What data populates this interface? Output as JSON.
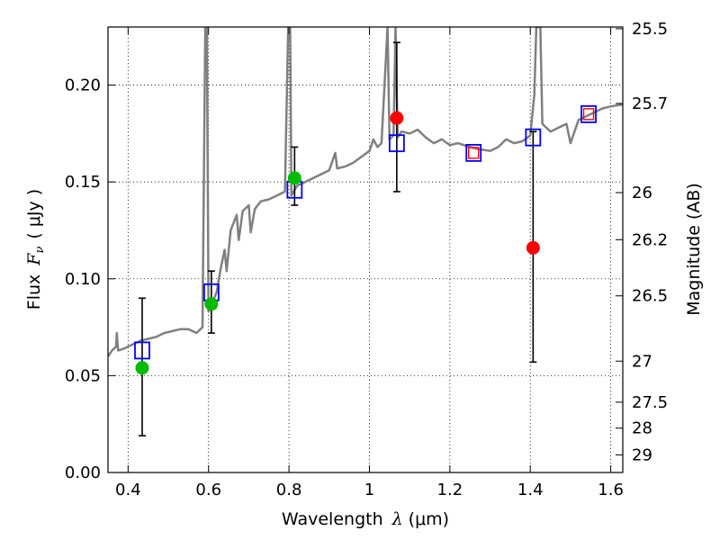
{
  "chart_data": {
    "type": "scatter",
    "xlabel_text": "Wavelength",
    "xlabel_symbol": "λ",
    "xlabel_unit": "(μm)",
    "ylabel_text": "Flux",
    "ylabel_symbol": "F",
    "ylabel_sub": "ν",
    "ylabel_unit": "( μJy )",
    "y2label": "Magnitude (AB)",
    "xlim": [
      0.35,
      1.63
    ],
    "ylim": [
      0.0,
      0.23
    ],
    "grid": true,
    "grid_style": "dotted",
    "x_ticks": [
      0.4,
      0.6,
      0.8,
      1.0,
      1.2,
      1.4,
      1.6
    ],
    "x_tick_labels": [
      "0.4",
      "0.6",
      "0.8",
      "1",
      "1.2",
      "1.4",
      "1.6"
    ],
    "y_ticks": [
      0.0,
      0.05,
      0.1,
      0.15,
      0.2
    ],
    "y_tick_labels": [
      "0.00",
      "0.05",
      "0.10",
      "0.15",
      "0.20"
    ],
    "mag_ticks": [
      {
        "label": "25.5",
        "flux": 0.2291
      },
      {
        "label": "25.7",
        "flux": 0.1905
      },
      {
        "label": "26",
        "flux": 0.1445
      },
      {
        "label": "26.2",
        "flux": 0.1202
      },
      {
        "label": "26.5",
        "flux": 0.0912
      },
      {
        "label": "27",
        "flux": 0.0575
      },
      {
        "label": "27.5",
        "flux": 0.0363
      },
      {
        "label": "28",
        "flux": 0.0229
      },
      {
        "label": "29",
        "flux": 0.0091
      }
    ],
    "model_spectrum": {
      "color": "#808080",
      "points": [
        [
          0.35,
          0.06
        ],
        [
          0.36,
          0.063
        ],
        [
          0.37,
          0.065
        ],
        [
          0.372,
          0.072
        ],
        [
          0.375,
          0.063
        ],
        [
          0.39,
          0.064
        ],
        [
          0.41,
          0.066
        ],
        [
          0.43,
          0.068
        ],
        [
          0.45,
          0.069
        ],
        [
          0.47,
          0.07
        ],
        [
          0.49,
          0.072
        ],
        [
          0.51,
          0.073
        ],
        [
          0.53,
          0.074
        ],
        [
          0.55,
          0.074
        ],
        [
          0.57,
          0.072
        ],
        [
          0.585,
          0.075
        ],
        [
          0.592,
          0.23
        ],
        [
          0.596,
          0.23
        ],
        [
          0.6,
          0.083
        ],
        [
          0.62,
          0.093
        ],
        [
          0.63,
          0.105
        ],
        [
          0.64,
          0.115
        ],
        [
          0.645,
          0.104
        ],
        [
          0.655,
          0.125
        ],
        [
          0.67,
          0.133
        ],
        [
          0.675,
          0.12
        ],
        [
          0.685,
          0.135
        ],
        [
          0.7,
          0.138
        ],
        [
          0.705,
          0.124
        ],
        [
          0.715,
          0.136
        ],
        [
          0.73,
          0.14
        ],
        [
          0.75,
          0.141
        ],
        [
          0.77,
          0.143
        ],
        [
          0.79,
          0.145
        ],
        [
          0.798,
          0.23
        ],
        [
          0.803,
          0.23
        ],
        [
          0.806,
          0.143
        ],
        [
          0.82,
          0.148
        ],
        [
          0.84,
          0.15
        ],
        [
          0.86,
          0.152
        ],
        [
          0.88,
          0.154
        ],
        [
          0.9,
          0.156
        ],
        [
          0.915,
          0.165
        ],
        [
          0.92,
          0.157
        ],
        [
          0.94,
          0.158
        ],
        [
          0.96,
          0.16
        ],
        [
          0.98,
          0.163
        ],
        [
          1.0,
          0.166
        ],
        [
          1.01,
          0.172
        ],
        [
          1.02,
          0.168
        ],
        [
          1.03,
          0.17
        ],
        [
          1.045,
          0.23
        ],
        [
          1.05,
          0.172
        ],
        [
          1.06,
          0.174
        ],
        [
          1.065,
          0.23
        ],
        [
          1.07,
          0.173
        ],
        [
          1.08,
          0.176
        ],
        [
          1.1,
          0.175
        ],
        [
          1.12,
          0.177
        ],
        [
          1.14,
          0.173
        ],
        [
          1.16,
          0.17
        ],
        [
          1.18,
          0.172
        ],
        [
          1.2,
          0.169
        ],
        [
          1.22,
          0.17
        ],
        [
          1.25,
          0.168
        ],
        [
          1.27,
          0.167
        ],
        [
          1.3,
          0.166
        ],
        [
          1.32,
          0.168
        ],
        [
          1.34,
          0.172
        ],
        [
          1.36,
          0.17
        ],
        [
          1.38,
          0.171
        ],
        [
          1.4,
          0.174
        ],
        [
          1.41,
          0.195
        ],
        [
          1.415,
          0.23
        ],
        [
          1.425,
          0.23
        ],
        [
          1.43,
          0.18
        ],
        [
          1.45,
          0.176
        ],
        [
          1.47,
          0.178
        ],
        [
          1.49,
          0.18
        ],
        [
          1.5,
          0.17
        ],
        [
          1.52,
          0.182
        ],
        [
          1.54,
          0.184
        ],
        [
          1.56,
          0.186
        ],
        [
          1.58,
          0.188
        ],
        [
          1.6,
          0.189
        ],
        [
          1.63,
          0.19
        ]
      ]
    },
    "model_photometry_blue_squares": {
      "color": "#0000ff",
      "points": [
        [
          0.435,
          0.063
        ],
        [
          0.607,
          0.093
        ],
        [
          0.814,
          0.146
        ],
        [
          1.068,
          0.17
        ],
        [
          1.259,
          0.165
        ],
        [
          1.407,
          0.173
        ],
        [
          1.545,
          0.185
        ]
      ]
    },
    "upper_limits_red_squares": {
      "color": "#ff0000",
      "points": [
        [
          1.259,
          0.165
        ],
        [
          1.545,
          0.185
        ]
      ]
    },
    "observed_green": {
      "color": "#00bb00",
      "points": [
        {
          "x": 0.435,
          "y": 0.054,
          "yerr_low": 0.019,
          "yerr_high": 0.09
        },
        {
          "x": 0.607,
          "y": 0.087,
          "yerr_low": 0.072,
          "yerr_high": 0.104
        },
        {
          "x": 0.814,
          "y": 0.152,
          "yerr_low": 0.138,
          "yerr_high": 0.168
        }
      ]
    },
    "observed_red": {
      "color": "#ff0000",
      "points": [
        {
          "x": 1.068,
          "y": 0.183,
          "yerr_low": 0.145,
          "yerr_high": 0.222
        },
        {
          "x": 1.407,
          "y": 0.116,
          "yerr_low": 0.057,
          "yerr_high": 0.176
        }
      ]
    }
  }
}
